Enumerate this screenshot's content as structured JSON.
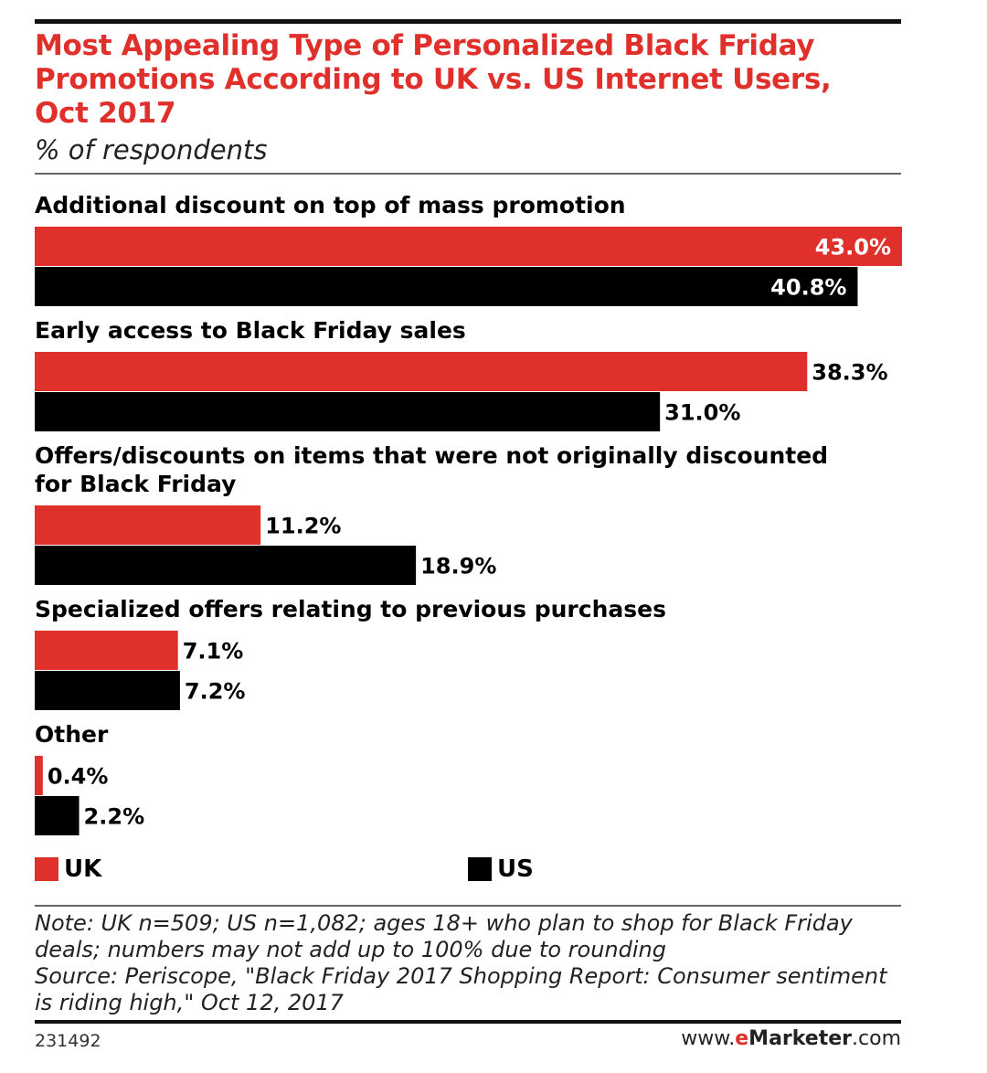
{
  "colors": {
    "uk": "#e0302c",
    "us": "#000000",
    "title": "#e0302c"
  },
  "chart_data": {
    "type": "bar",
    "orientation": "horizontal",
    "title": "Most Appealing Type of Personalized Black Friday Promotions According to UK vs. US Internet Users, Oct 2017",
    "subtitle": "% of respondents",
    "categories": [
      "Additional discount on top of mass promotion",
      "Early access to Black Friday sales",
      "Offers/discounts on items that were not originally discounted for Black Friday",
      "Specialized offers relating to previous purchases",
      "Other"
    ],
    "series": [
      {
        "name": "UK",
        "values": [
          43.0,
          38.3,
          11.2,
          7.1,
          0.4
        ],
        "labels": [
          "43.0%",
          "38.3%",
          "11.2%",
          "7.1%",
          "0.4%"
        ]
      },
      {
        "name": "US",
        "values": [
          40.8,
          31.0,
          18.9,
          7.2,
          2.2
        ],
        "labels": [
          "40.8%",
          "31.0%",
          "18.9%",
          "7.2%",
          "2.2%"
        ]
      }
    ],
    "xlim": [
      0,
      43.0
    ],
    "legend": "bottom",
    "grid": false
  },
  "note": "Note: UK n=509; US n=1,082; ages 18+ who plan to shop for Black Friday deals; numbers may not add up to 100% due to rounding",
  "source": "Source: Periscope, \"Black Friday 2017 Shopping Report: Consumer sentiment is riding high,\" Oct 12, 2017",
  "footer": {
    "chart_id": "231492",
    "brand_prefix": "www.",
    "brand_e": "e",
    "brand_name": "Marketer",
    "brand_suffix": ".com"
  }
}
